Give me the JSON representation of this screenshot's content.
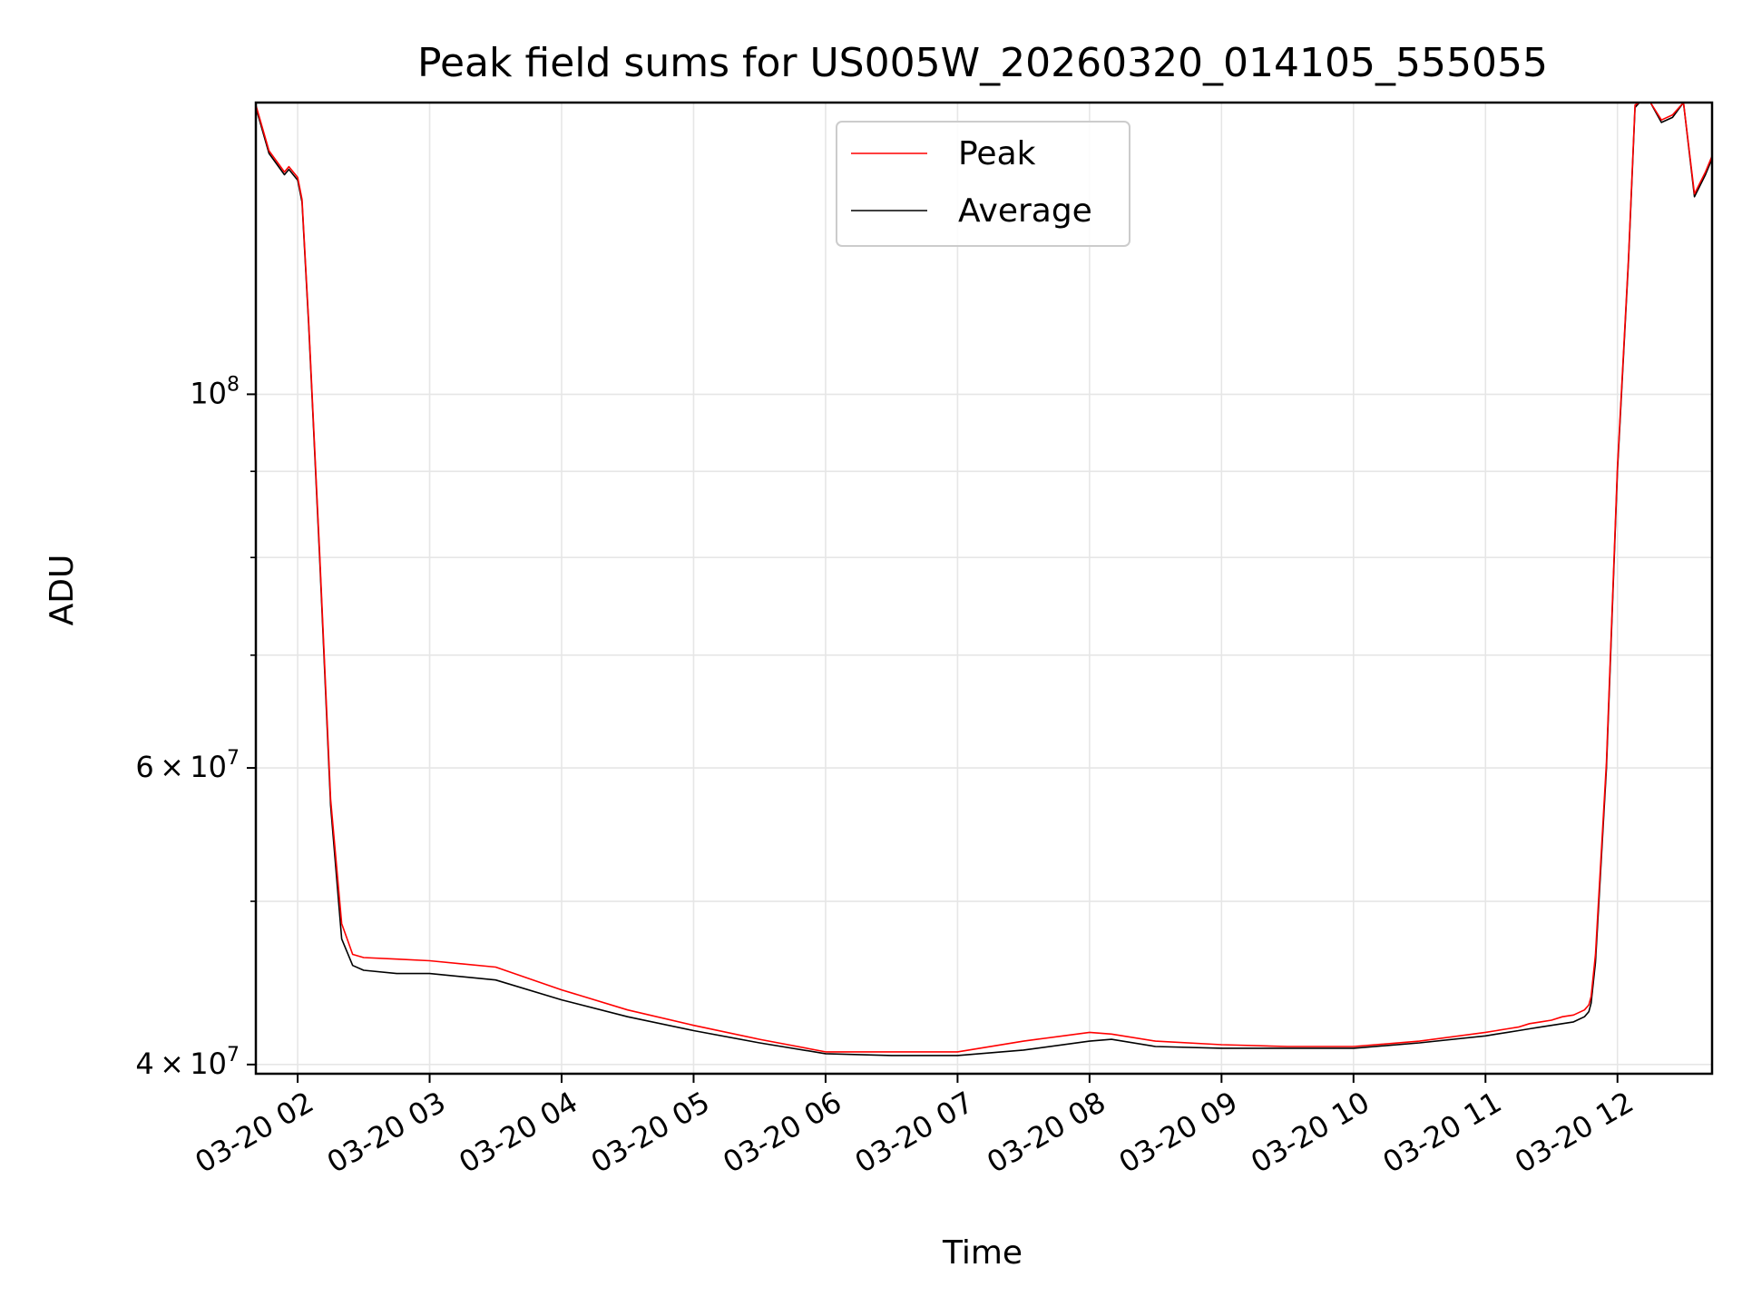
{
  "chart_data": {
    "type": "line",
    "title": "Peak field sums for US005W_20260320_014105_555055",
    "xlabel": "Time",
    "ylabel": "ADU",
    "yscale": "log",
    "grid": true,
    "legend_position": "top-center",
    "x_tick_labels": [
      "03-20 02",
      "03-20 03",
      "03-20 04",
      "03-20 05",
      "03-20 06",
      "03-20 07",
      "03-20 08",
      "03-20 09",
      "03-20 10",
      "03-20 11",
      "03-20 12"
    ],
    "y_tick_labels": [
      {
        "value": 100000000,
        "base": "10",
        "exp": "8"
      },
      {
        "value": 60000000,
        "mant": "6",
        "base": "10",
        "exp": "7"
      },
      {
        "value": 40000000,
        "mant": "4",
        "base": "10",
        "exp": "7"
      }
    ],
    "xlim": [
      "2026-03-20 01:41",
      "2026-03-20 12:43"
    ],
    "ylim": [
      39500000,
      149000000
    ],
    "series": [
      {
        "name": "Average",
        "color": "#000000",
        "x": [
          "2026-03-20 01:41",
          "2026-03-20 01:47",
          "2026-03-20 01:54",
          "2026-03-20 01:56",
          "2026-03-20 02:00",
          "2026-03-20 02:02",
          "2026-03-20 02:05",
          "2026-03-20 02:10",
          "2026-03-20 02:15",
          "2026-03-20 02:20",
          "2026-03-20 02:25",
          "2026-03-20 02:30",
          "2026-03-20 02:45",
          "2026-03-20 03:00",
          "2026-03-20 03:30",
          "2026-03-20 04:00",
          "2026-03-20 04:30",
          "2026-03-20 05:00",
          "2026-03-20 05:30",
          "2026-03-20 06:00",
          "2026-03-20 06:30",
          "2026-03-20 07:00",
          "2026-03-20 07:30",
          "2026-03-20 08:00",
          "2026-03-20 08:10",
          "2026-03-20 08:30",
          "2026-03-20 09:00",
          "2026-03-20 09:30",
          "2026-03-20 10:00",
          "2026-03-20 10:30",
          "2026-03-20 11:00",
          "2026-03-20 11:05",
          "2026-03-20 11:10",
          "2026-03-20 11:15",
          "2026-03-20 11:20",
          "2026-03-20 11:25",
          "2026-03-20 11:30",
          "2026-03-20 11:35",
          "2026-03-20 11:40",
          "2026-03-20 11:45",
          "2026-03-20 11:47",
          "2026-03-20 11:48",
          "2026-03-20 11:50",
          "2026-03-20 11:55",
          "2026-03-20 12:00",
          "2026-03-20 12:05",
          "2026-03-20 12:08",
          "2026-03-20 12:10",
          "2026-03-20 12:15",
          "2026-03-20 12:20",
          "2026-03-20 12:25",
          "2026-03-20 12:30",
          "2026-03-20 12:35",
          "2026-03-20 12:40",
          "2026-03-20 12:43"
        ],
        "values": [
          148000000,
          139000000,
          135000000,
          136000000,
          134000000,
          130000000,
          110000000,
          80000000,
          57000000,
          47500000,
          45800000,
          45500000,
          45300000,
          45300000,
          44900000,
          43700000,
          42700000,
          41900000,
          41200000,
          40600000,
          40500000,
          40500000,
          40800000,
          41300000,
          41400000,
          41000000,
          40900000,
          40900000,
          40900000,
          41200000,
          41600000,
          41700000,
          41800000,
          41900000,
          42000000,
          42100000,
          42200000,
          42300000,
          42400000,
          42700000,
          43000000,
          43500000,
          46000000,
          60000000,
          90000000,
          120000000,
          148000000,
          149000000,
          149000000,
          145000000,
          146000000,
          149000000,
          131000000,
          135000000,
          138000000
        ]
      },
      {
        "name": "Peak",
        "color": "#ff0000",
        "x": [
          "2026-03-20 01:41",
          "2026-03-20 01:47",
          "2026-03-20 01:54",
          "2026-03-20 01:56",
          "2026-03-20 02:00",
          "2026-03-20 02:02",
          "2026-03-20 02:05",
          "2026-03-20 02:10",
          "2026-03-20 02:15",
          "2026-03-20 02:20",
          "2026-03-20 02:25",
          "2026-03-20 02:30",
          "2026-03-20 02:45",
          "2026-03-20 03:00",
          "2026-03-20 03:30",
          "2026-03-20 04:00",
          "2026-03-20 04:30",
          "2026-03-20 05:00",
          "2026-03-20 05:30",
          "2026-03-20 06:00",
          "2026-03-20 06:30",
          "2026-03-20 07:00",
          "2026-03-20 07:30",
          "2026-03-20 08:00",
          "2026-03-20 08:10",
          "2026-03-20 08:30",
          "2026-03-20 09:00",
          "2026-03-20 09:30",
          "2026-03-20 10:00",
          "2026-03-20 10:30",
          "2026-03-20 11:00",
          "2026-03-20 11:05",
          "2026-03-20 11:10",
          "2026-03-20 11:15",
          "2026-03-20 11:20",
          "2026-03-20 11:25",
          "2026-03-20 11:30",
          "2026-03-20 11:35",
          "2026-03-20 11:40",
          "2026-03-20 11:45",
          "2026-03-20 11:47",
          "2026-03-20 11:48",
          "2026-03-20 11:50",
          "2026-03-20 11:55",
          "2026-03-20 12:00",
          "2026-03-20 12:05",
          "2026-03-20 12:08",
          "2026-03-20 12:10",
          "2026-03-20 12:15",
          "2026-03-20 12:20",
          "2026-03-20 12:25",
          "2026-03-20 12:30",
          "2026-03-20 12:35",
          "2026-03-20 12:40",
          "2026-03-20 12:43"
        ],
        "values": [
          148500000,
          139500000,
          135500000,
          136500000,
          134500000,
          130500000,
          110500000,
          80500000,
          57500000,
          48500000,
          46500000,
          46300000,
          46200000,
          46100000,
          45700000,
          44300000,
          43100000,
          42200000,
          41400000,
          40700000,
          40700000,
          40700000,
          41300000,
          41800000,
          41700000,
          41300000,
          41100000,
          41000000,
          41000000,
          41300000,
          41800000,
          41900000,
          42000000,
          42100000,
          42300000,
          42400000,
          42500000,
          42700000,
          42800000,
          43100000,
          43400000,
          43900000,
          46500000,
          60500000,
          90500000,
          120500000,
          148500000,
          149000000,
          149000000,
          145500000,
          146500000,
          149000000,
          131500000,
          135500000,
          138500000
        ]
      }
    ]
  }
}
